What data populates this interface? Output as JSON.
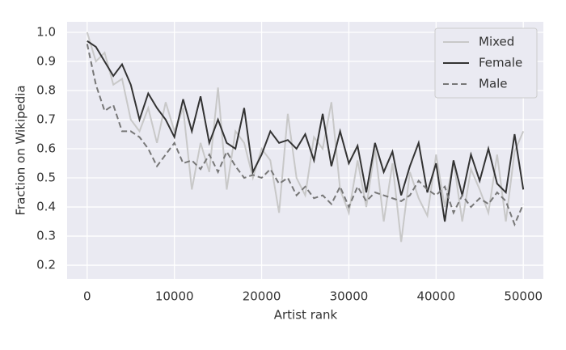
{
  "chart_data": {
    "type": "line",
    "xlabel": "Artist rank",
    "ylabel": "Fraction on Wikipedia",
    "x": [
      0,
      1000,
      2000,
      3000,
      4000,
      5000,
      6000,
      7000,
      8000,
      9000,
      10000,
      11000,
      12000,
      13000,
      14000,
      15000,
      16000,
      17000,
      18000,
      19000,
      20000,
      21000,
      22000,
      23000,
      24000,
      25000,
      26000,
      27000,
      28000,
      29000,
      30000,
      31000,
      32000,
      33000,
      34000,
      35000,
      36000,
      37000,
      38000,
      39000,
      40000,
      41000,
      42000,
      43000,
      44000,
      45000,
      46000,
      47000,
      48000,
      49000,
      50000
    ],
    "series": [
      {
        "name": "Mixed",
        "color": "#c8c8c8",
        "linestyle": "solid",
        "values": [
          1.0,
          0.9,
          0.93,
          0.82,
          0.84,
          0.7,
          0.66,
          0.74,
          0.62,
          0.76,
          0.66,
          0.74,
          0.46,
          0.62,
          0.52,
          0.81,
          0.46,
          0.66,
          0.62,
          0.5,
          0.6,
          0.56,
          0.38,
          0.72,
          0.5,
          0.44,
          0.64,
          0.6,
          0.76,
          0.46,
          0.38,
          0.56,
          0.4,
          0.6,
          0.35,
          0.55,
          0.28,
          0.52,
          0.43,
          0.37,
          0.58,
          0.4,
          0.56,
          0.35,
          0.53,
          0.46,
          0.38,
          0.58,
          0.35,
          0.59,
          0.66
        ]
      },
      {
        "name": "Female",
        "color": "#333333",
        "linestyle": "solid",
        "values": [
          0.97,
          0.95,
          0.9,
          0.85,
          0.89,
          0.82,
          0.7,
          0.79,
          0.74,
          0.7,
          0.64,
          0.77,
          0.66,
          0.78,
          0.62,
          0.7,
          0.62,
          0.6,
          0.74,
          0.52,
          0.58,
          0.66,
          0.62,
          0.63,
          0.6,
          0.65,
          0.56,
          0.72,
          0.54,
          0.66,
          0.55,
          0.61,
          0.45,
          0.62,
          0.52,
          0.59,
          0.44,
          0.54,
          0.62,
          0.45,
          0.55,
          0.35,
          0.56,
          0.44,
          0.58,
          0.49,
          0.6,
          0.48,
          0.45,
          0.65,
          0.46
        ]
      },
      {
        "name": "Male",
        "color": "#777777",
        "linestyle": "dashed",
        "values": [
          0.96,
          0.82,
          0.73,
          0.75,
          0.66,
          0.66,
          0.64,
          0.6,
          0.54,
          0.58,
          0.62,
          0.55,
          0.56,
          0.53,
          0.58,
          0.52,
          0.59,
          0.54,
          0.5,
          0.51,
          0.5,
          0.53,
          0.48,
          0.5,
          0.44,
          0.47,
          0.43,
          0.44,
          0.41,
          0.47,
          0.4,
          0.47,
          0.42,
          0.45,
          0.44,
          0.43,
          0.42,
          0.44,
          0.49,
          0.46,
          0.44,
          0.47,
          0.38,
          0.44,
          0.4,
          0.43,
          0.41,
          0.45,
          0.42,
          0.34,
          0.41
        ]
      }
    ],
    "xlim": [
      -2300,
      52300
    ],
    "xticks": [
      0,
      10000,
      20000,
      30000,
      40000,
      50000
    ],
    "ylim": [
      0.153,
      1.036
    ],
    "yticks": [
      0.2,
      0.3,
      0.4,
      0.5,
      0.6,
      0.7,
      0.8,
      0.9,
      {
        "value": 1,
        "label": "1.0"
      }
    ],
    "grid": true,
    "legend_loc": "upper right"
  }
}
